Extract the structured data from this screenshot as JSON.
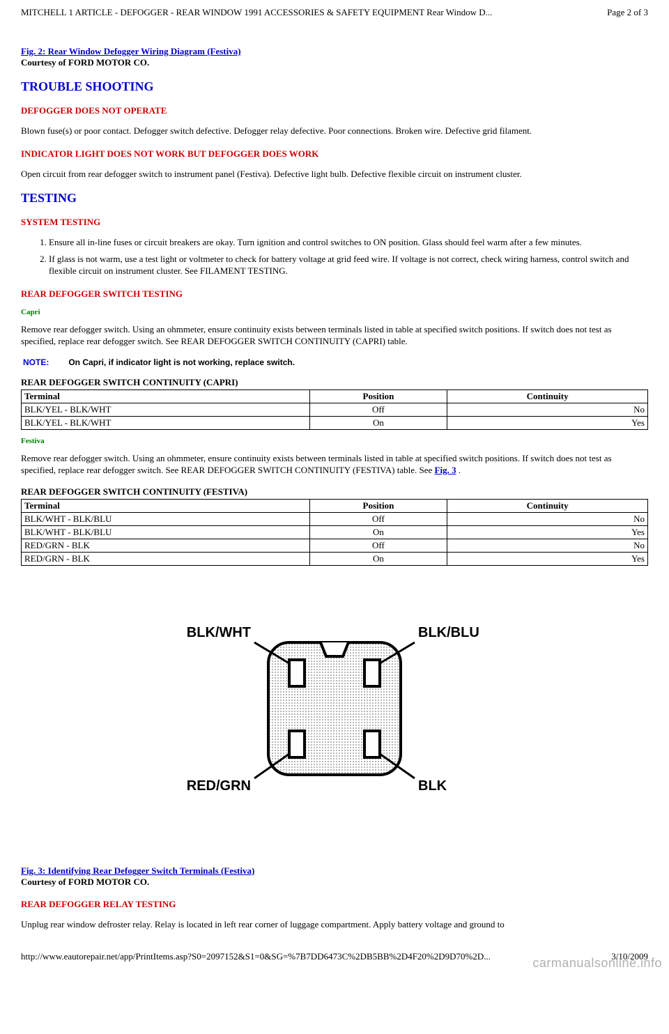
{
  "header": {
    "title": "MITCHELL 1 ARTICLE - DEFOGGER - REAR WINDOW 1991 ACCESSORIES & SAFETY EQUIPMENT Rear Window D...",
    "page_label": "Page 2 of 3"
  },
  "fig2": {
    "link_text": "Fig. 2: Rear Window Defogger Wiring Diagram (Festiva)",
    "courtesy": "Courtesy of FORD MOTOR CO."
  },
  "section_trouble": {
    "heading": "TROUBLE SHOOTING",
    "sub1_heading": "DEFOGGER DOES NOT OPERATE",
    "sub1_body": "Blown fuse(s) or poor contact. Defogger switch defective. Defogger relay defective. Poor connections. Broken wire. Defective grid filament.",
    "sub2_heading": "INDICATOR LIGHT DOES NOT WORK BUT DEFOGGER DOES WORK",
    "sub2_body": "Open circuit from rear defogger switch to instrument panel (Festiva). Defective light bulb. Defective flexible circuit on instrument cluster."
  },
  "section_testing": {
    "heading": "TESTING",
    "system_heading": "SYSTEM TESTING",
    "steps": [
      "Ensure all in-line fuses or circuit breakers are okay. Turn ignition and control switches to ON position. Glass should feel warm after a few minutes.",
      "If glass is not warm, use a test light or voltmeter to check for battery voltage at grid feed wire. If voltage is not correct, check wiring harness, control switch and flexible circuit on instrument cluster. See FILAMENT TESTING."
    ],
    "switch_heading": "REAR DEFOGGER SWITCH TESTING",
    "capri_sub": "Capri",
    "capri_body": "Remove rear defogger switch. Using an ohmmeter, ensure continuity exists between terminals listed in table at specified switch positions. If switch does not test as specified, replace rear defogger switch. See REAR DEFOGGER SWITCH CONTINUITY (CAPRI) table.",
    "note_label": "NOTE:",
    "note_text": "On Capri, if indicator light is not working, replace switch.",
    "capri_table_title": "REAR DEFOGGER SWITCH CONTINUITY (CAPRI)",
    "capri_table": {
      "columns": [
        "Terminal",
        "Position",
        "Continuity"
      ],
      "col_widths": [
        "46%",
        "22%",
        "32%"
      ],
      "col_align": [
        "left",
        "center",
        "right"
      ],
      "rows": [
        [
          "BLK/YEL - BLK/WHT",
          "Off",
          "No"
        ],
        [
          "BLK/YEL - BLK/WHT",
          "On",
          "Yes"
        ]
      ]
    },
    "festiva_sub": "Festiva",
    "festiva_body_pre": "Remove rear defogger switch. Using an ohmmeter, ensure continuity exists between terminals listed in table at specified switch positions. If switch does not test as specified, replace rear defogger switch. See REAR DEFOGGER SWITCH CONTINUITY (FESTIVA) table. See ",
    "festiva_body_link": "Fig. 3",
    "festiva_body_post": " .",
    "festiva_table_title": "REAR DEFOGGER SWITCH CONTINUITY (FESTIVA)",
    "festiva_table": {
      "columns": [
        "Terminal",
        "Position",
        "Continuity"
      ],
      "col_widths": [
        "46%",
        "22%",
        "32%"
      ],
      "col_align": [
        "left",
        "center",
        "right"
      ],
      "rows": [
        [
          "BLK/WHT - BLK/BLU",
          "Off",
          "No"
        ],
        [
          "BLK/WHT - BLK/BLU",
          "On",
          "Yes"
        ],
        [
          "RED/GRN - BLK",
          "Off",
          "No"
        ],
        [
          "RED/GRN - BLK",
          "On",
          "Yes"
        ]
      ]
    }
  },
  "diagram": {
    "labels": {
      "tl": "BLK/WHT",
      "tr": "BLK/BLU",
      "bl": "RED/GRN",
      "br": "BLK"
    },
    "font_size": 18,
    "stroke_color": "#000000",
    "fill_pattern_color": "#000000",
    "bg_color": "#ffffff"
  },
  "fig3": {
    "link_text": "Fig. 3: Identifying Rear Defogger Switch Terminals (Festiva)",
    "courtesy": "Courtesy of FORD MOTOR CO."
  },
  "relay_heading": "REAR DEFOGGER RELAY TESTING",
  "relay_body": "Unplug rear window defroster relay. Relay is located in left rear corner of luggage compartment. Apply battery voltage and ground to",
  "footer": {
    "url": "http://www.eautorepair.net/app/PrintItems.asp?S0=2097152&S1=0&SG=%7B7DD6473C%2DB5BB%2D4F20%2D9D70%2D...",
    "date": "3/10/2009"
  },
  "watermark": "carmanualsonline.info"
}
